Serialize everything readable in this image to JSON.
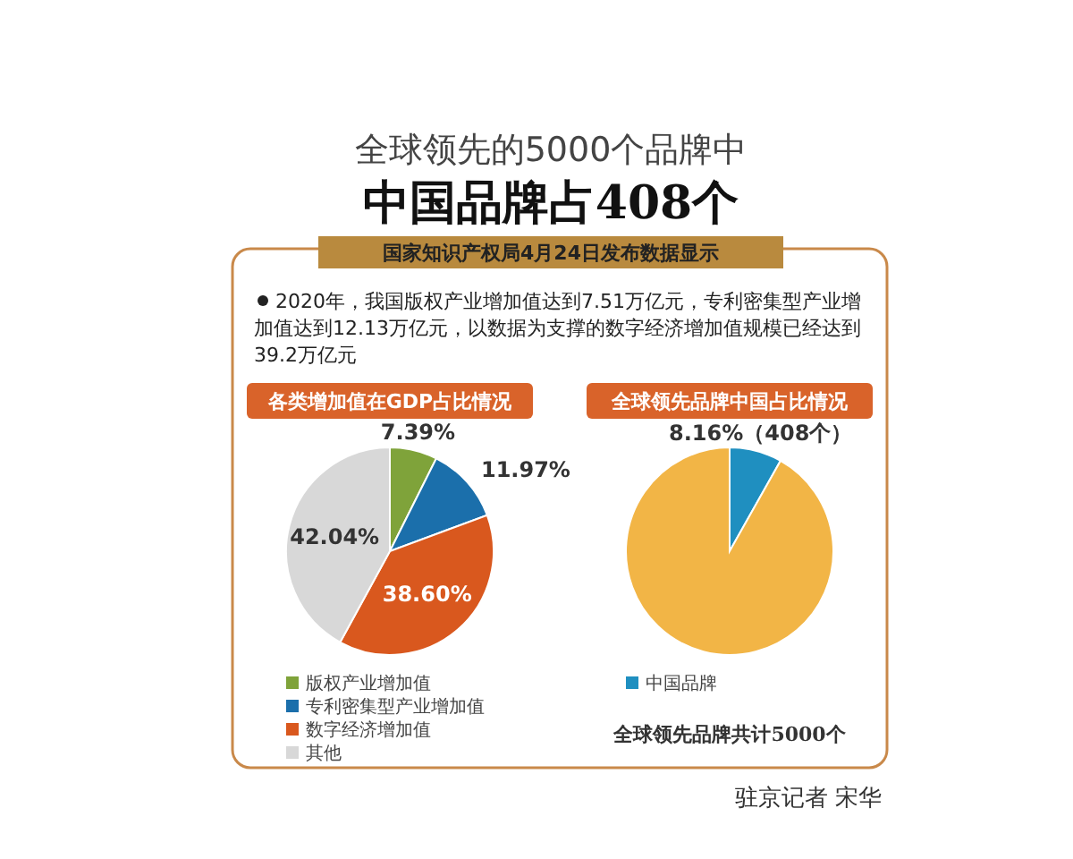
{
  "chart_data": [
    {
      "type": "pie",
      "title": "各类增加值在GDP占比情况",
      "categories": [
        "版权产业增加值",
        "专利密集型产业增加值",
        "数字经济增加值",
        "其他"
      ],
      "values": [
        7.39,
        11.97,
        38.6,
        42.04
      ],
      "colors": [
        "#7fa33a",
        "#1b6fab",
        "#d9581e",
        "#d8d8d8"
      ],
      "value_labels": [
        "7.39%",
        "11.97%",
        "38.60%",
        "42.04%"
      ],
      "legend": "bottom",
      "annotations": [
        "全球领先的5000个品牌中",
        "中国品牌占408个",
        "国家知识产权局4月24日发布数据显示",
        "2020年，我国版权产业增加值达到7.51万亿元，专利密集型产业增加值达到12.13万亿元，以数据为支撑的数字经济增加值规模已经达到39.2万亿元"
      ]
    },
    {
      "type": "pie",
      "title": "全球领先品牌中国占比情况",
      "categories": [
        "中国品牌",
        null
      ],
      "values": [
        8.16,
        91.84
      ],
      "colors": [
        "#1f8fc0",
        "#f2b546"
      ],
      "value_labels": [
        "8.16%（408个）",
        null
      ],
      "legend": "bottom",
      "annotations": [
        "全球领先品牌共计5000个",
        "驻京记者 宋华"
      ]
    }
  ]
}
